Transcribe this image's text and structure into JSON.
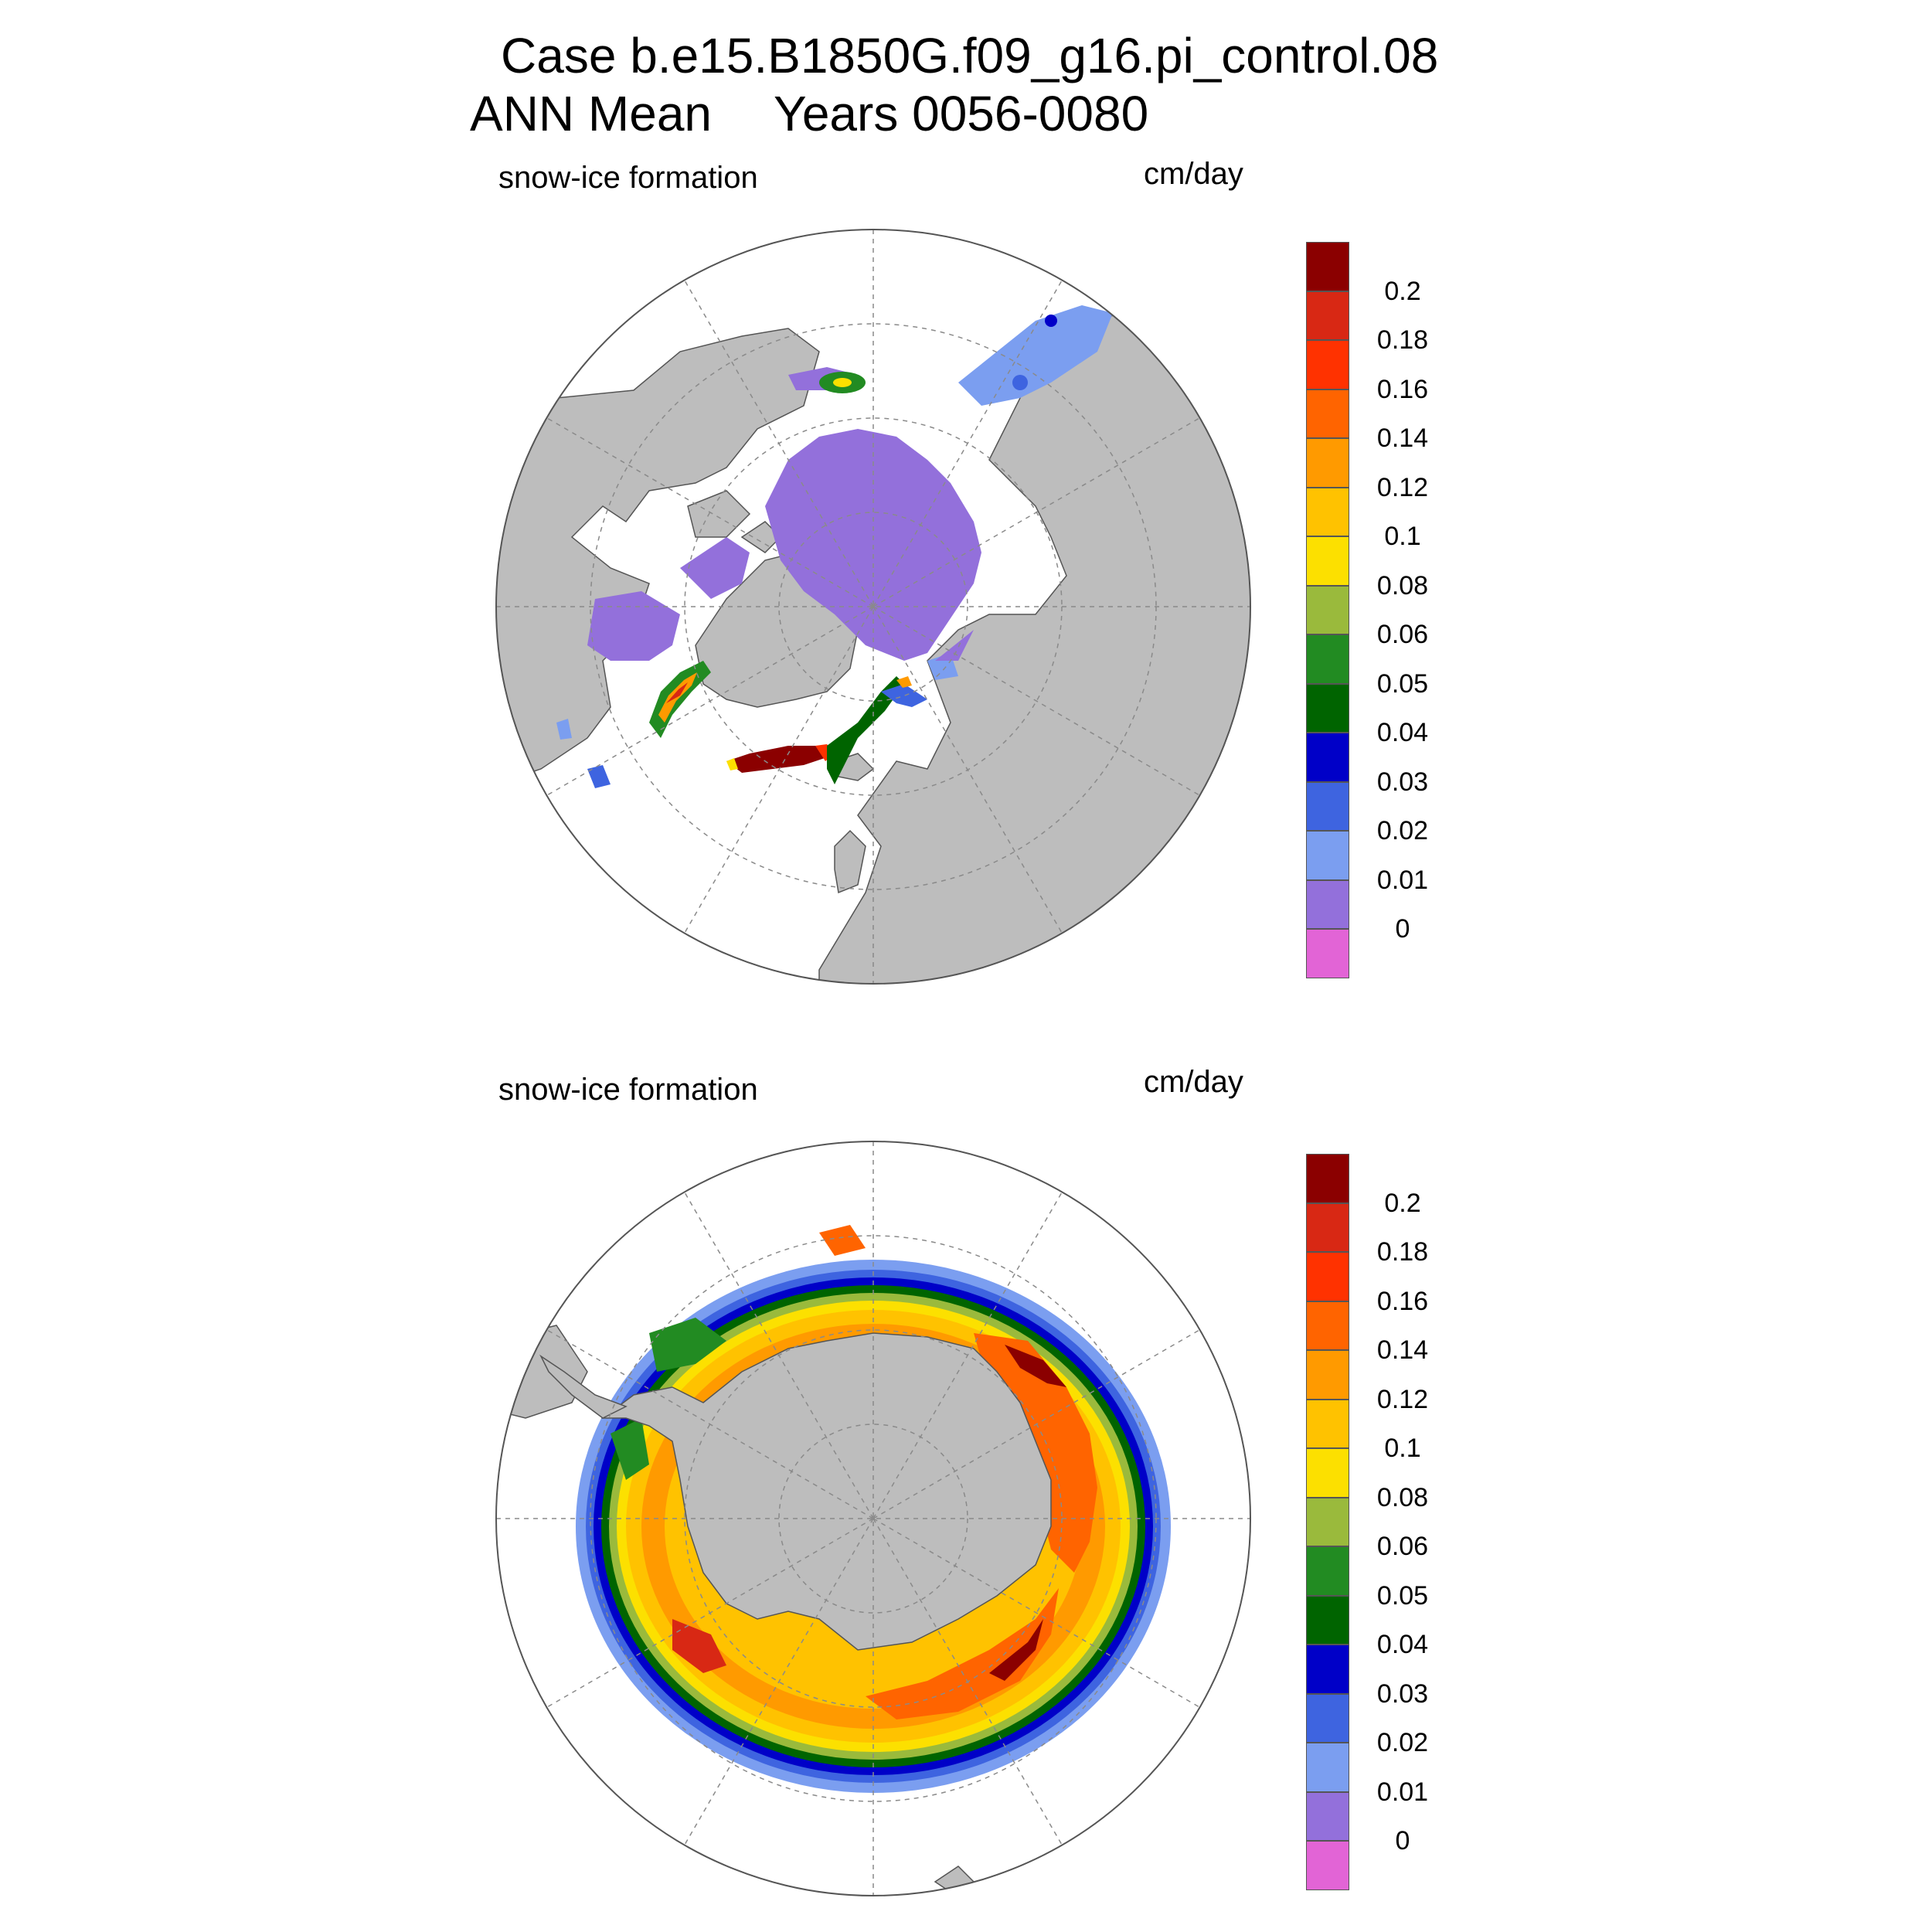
{
  "figure": {
    "title_line_1": "Case b.e15.B1850G.f09_g16.pi_control.08",
    "title_line_2_left": "ANN Mean",
    "title_line_2_right": "Years 0056-0080"
  },
  "colors": {
    "land": "#bdbdbd",
    "coastline": "#555555",
    "grid": "#8a8a8a",
    "background": "#ffffff"
  },
  "colorbar": {
    "colors": [
      "#e264d6",
      "#9370db",
      "#7b9ef0",
      "#3e64e0",
      "#0000c8",
      "#006400",
      "#228b22",
      "#9aba3c",
      "#fce000",
      "#ffc200",
      "#ff9a00",
      "#ff6400",
      "#ff3200",
      "#d82814",
      "#8b0000"
    ],
    "tick_labels": [
      "0",
      "0.01",
      "0.02",
      "0.03",
      "0.04",
      "0.05",
      "0.06",
      "0.08",
      "0.1",
      "0.12",
      "0.14",
      "0.16",
      "0.18",
      "0.2"
    ]
  },
  "panels": [
    {
      "id": "north",
      "label_left": "snow-ice formation",
      "label_right": "cm/day",
      "hemisphere": "Northern Hemisphere polar stereographic",
      "pattern": "low values (0-0.01) over the central Arctic, Hudson Bay, Baffin Bay and Barents Sea; high values (0.1-0.2+) along the east and southeast coast of Greenland and the Labrador coast"
    },
    {
      "id": "south",
      "label_left": "snow-ice formation",
      "label_right": "cm/day",
      "hemisphere": "Southern Hemisphere polar stereographic",
      "pattern": "ring of high values (0.08-0.2+) around Antarctica with maxima (>0.2) in the Weddell/eastern sectors; outer edge 0.02-0.05"
    }
  ]
}
